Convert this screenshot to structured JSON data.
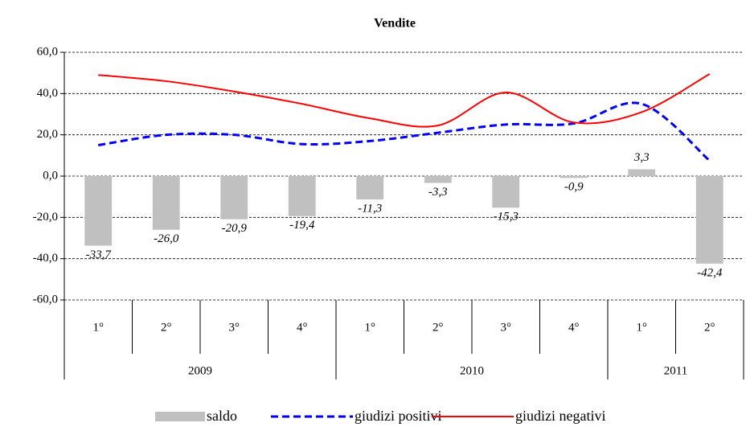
{
  "chart_data": {
    "type": "bar-line",
    "title": "Vendite",
    "categories": [
      "1°",
      "2°",
      "3°",
      "4°",
      "1°",
      "2°",
      "3°",
      "4°",
      "1°",
      "2°"
    ],
    "groups": [
      {
        "label": "2009",
        "span": 4
      },
      {
        "label": "2010",
        "span": 4
      },
      {
        "label": "2011",
        "span": 2
      }
    ],
    "ylim": [
      -60,
      60
    ],
    "yticks": [
      {
        "value": -60,
        "label": "-60,0"
      },
      {
        "value": -40,
        "label": "-40,0"
      },
      {
        "value": -20,
        "label": "-20,0"
      },
      {
        "value": 0,
        "label": "0,0"
      },
      {
        "value": 20,
        "label": "20,0"
      },
      {
        "value": 40,
        "label": "40,0"
      },
      {
        "value": 60,
        "label": "60,0"
      }
    ],
    "grid": true,
    "series": [
      {
        "name": "saldo",
        "type": "bar",
        "color": "#c0c0c0",
        "values": [
          -33.7,
          -26.0,
          -20.9,
          -19.4,
          -11.3,
          -3.3,
          -15.3,
          -0.9,
          3.3,
          -42.4
        ],
        "value_labels": [
          "-33,7",
          "-26,0",
          "-20,9",
          "-19,4",
          "-11,3",
          "-3,3",
          "-15,3",
          "-0,9",
          "3,3",
          "-42,4"
        ]
      },
      {
        "name": "giudizi positivi",
        "type": "line",
        "dashed": true,
        "color": "#0000ff",
        "values": [
          15,
          20,
          20,
          15.5,
          17,
          21,
          25,
          25.5,
          35,
          7.5
        ]
      },
      {
        "name": "giudizi negativi",
        "type": "line",
        "dashed": false,
        "color": "#ff0000",
        "values": [
          49,
          46,
          41,
          35,
          28,
          24.5,
          40.5,
          26,
          31,
          49.5
        ]
      }
    ]
  }
}
